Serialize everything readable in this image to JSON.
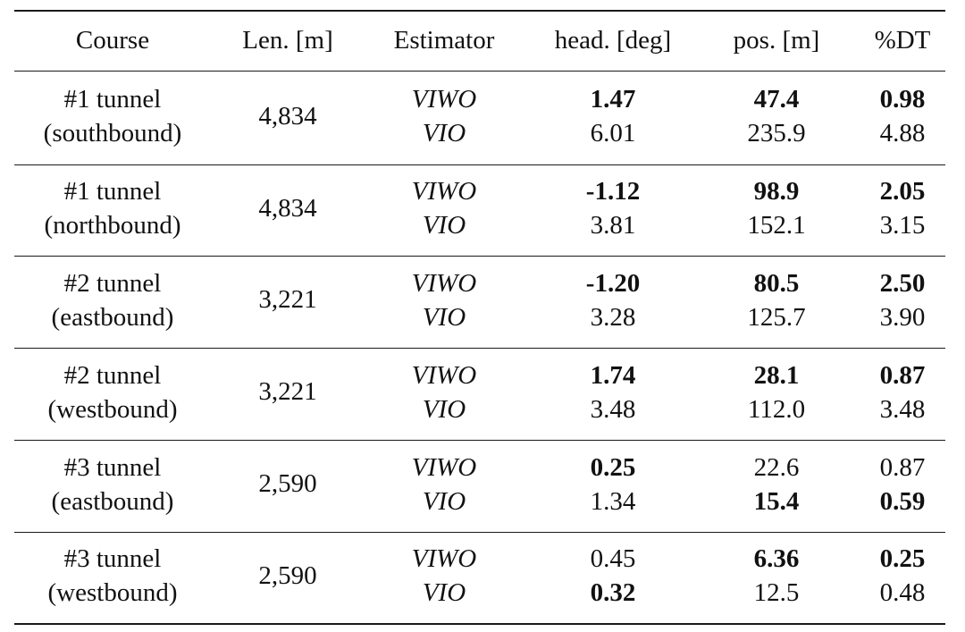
{
  "table": {
    "headers": [
      "Course",
      "Len. [m]",
      "Estimator",
      "head. [deg]",
      "pos. [m]",
      "%DT"
    ],
    "rows": [
      {
        "course_line1": "#1 tunnel",
        "course_line2": "(southbound)",
        "length": "4,834",
        "estimators": [
          {
            "name": "VIWO",
            "head": "1.47",
            "head_bold": true,
            "pos": "47.4",
            "pos_bold": true,
            "dt": "0.98",
            "dt_bold": true
          },
          {
            "name": "VIO",
            "head": "6.01",
            "head_bold": false,
            "pos": "235.9",
            "pos_bold": false,
            "dt": "4.88",
            "dt_bold": false
          }
        ]
      },
      {
        "course_line1": "#1 tunnel",
        "course_line2": "(northbound)",
        "length": "4,834",
        "estimators": [
          {
            "name": "VIWO",
            "head": "-1.12",
            "head_bold": true,
            "pos": "98.9",
            "pos_bold": true,
            "dt": "2.05",
            "dt_bold": true
          },
          {
            "name": "VIO",
            "head": "3.81",
            "head_bold": false,
            "pos": "152.1",
            "pos_bold": false,
            "dt": "3.15",
            "dt_bold": false
          }
        ]
      },
      {
        "course_line1": "#2 tunnel",
        "course_line2": "(eastbound)",
        "length": "3,221",
        "estimators": [
          {
            "name": "VIWO",
            "head": "-1.20",
            "head_bold": true,
            "pos": "80.5",
            "pos_bold": true,
            "dt": "2.50",
            "dt_bold": true
          },
          {
            "name": "VIO",
            "head": "3.28",
            "head_bold": false,
            "pos": "125.7",
            "pos_bold": false,
            "dt": "3.90",
            "dt_bold": false
          }
        ]
      },
      {
        "course_line1": "#2 tunnel",
        "course_line2": "(westbound)",
        "length": "3,221",
        "estimators": [
          {
            "name": "VIWO",
            "head": "1.74",
            "head_bold": true,
            "pos": "28.1",
            "pos_bold": true,
            "dt": "0.87",
            "dt_bold": true
          },
          {
            "name": "VIO",
            "head": "3.48",
            "head_bold": false,
            "pos": "112.0",
            "pos_bold": false,
            "dt": "3.48",
            "dt_bold": false
          }
        ]
      },
      {
        "course_line1": "#3 tunnel",
        "course_line2": "(eastbound)",
        "length": "2,590",
        "estimators": [
          {
            "name": "VIWO",
            "head": "0.25",
            "head_bold": true,
            "pos": "22.6",
            "pos_bold": false,
            "dt": "0.87",
            "dt_bold": false
          },
          {
            "name": "VIO",
            "head": "1.34",
            "head_bold": false,
            "pos": "15.4",
            "pos_bold": true,
            "dt": "0.59",
            "dt_bold": true
          }
        ]
      },
      {
        "course_line1": "#3 tunnel",
        "course_line2": "(westbound)",
        "length": "2,590",
        "estimators": [
          {
            "name": "VIWO",
            "head": "0.45",
            "head_bold": false,
            "pos": "6.36",
            "pos_bold": true,
            "dt": "0.25",
            "dt_bold": true
          },
          {
            "name": "VIO",
            "head": "0.32",
            "head_bold": true,
            "pos": "12.5",
            "pos_bold": false,
            "dt": "0.48",
            "dt_bold": false
          }
        ]
      }
    ]
  }
}
